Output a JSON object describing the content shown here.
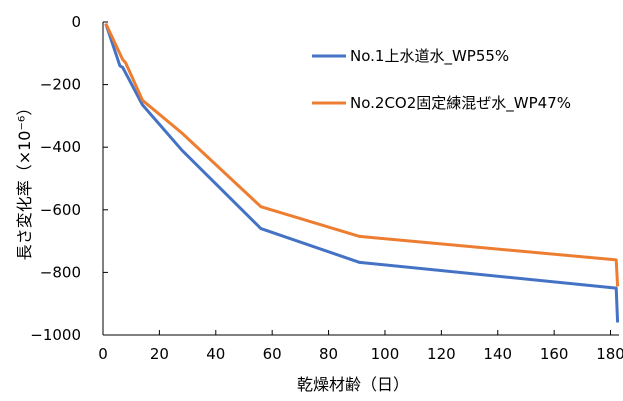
{
  "chart_data": {
    "type": "line",
    "xlabel": "乾燥材齢（日）",
    "ylabel": "長さ変化率（×10⁻⁶）",
    "xlim": [
      0,
      183
    ],
    "ylim": [
      -1000,
      0
    ],
    "x_ticks": [
      0,
      20,
      40,
      60,
      80,
      100,
      120,
      140,
      160,
      180
    ],
    "y_ticks": [
      0,
      -200,
      -400,
      -600,
      -800,
      -1000
    ],
    "grid": false,
    "legend_position": "top-right",
    "series": [
      {
        "name": "No.1上水道水_WP55%",
        "color": "#4472C4",
        "points": [
          [
            1,
            -5
          ],
          [
            6,
            -140
          ],
          [
            7,
            -145
          ],
          [
            14,
            -265
          ],
          [
            28,
            -410
          ],
          [
            56,
            -660
          ],
          [
            91,
            -768
          ],
          [
            182,
            -850
          ],
          [
            182.5,
            -960
          ]
        ]
      },
      {
        "name": "No.2CO2固定練混ぜ水_WP47%",
        "color": "#ED7D31",
        "points": [
          [
            1,
            -5
          ],
          [
            7,
            -120
          ],
          [
            8,
            -130
          ],
          [
            14,
            -250
          ],
          [
            28,
            -355
          ],
          [
            56,
            -590
          ],
          [
            91,
            -685
          ],
          [
            182,
            -760
          ],
          [
            182.5,
            -845
          ]
        ]
      }
    ]
  }
}
